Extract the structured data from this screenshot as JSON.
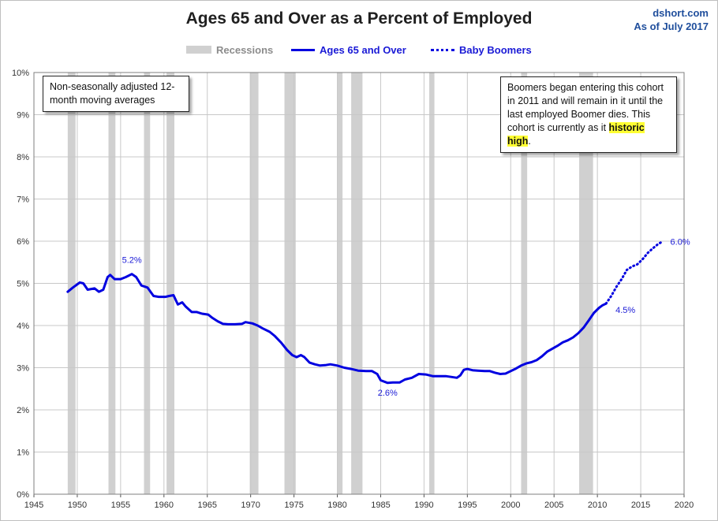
{
  "header": {
    "title": "Ages 65 and Over as a Percent of Employed",
    "source": "dshort.com",
    "as_of": "As of July 2017"
  },
  "legend": {
    "recessions": "Recessions",
    "main": "Ages 65 and Over",
    "boomers": "Baby Boomers"
  },
  "notes": {
    "left": "Non-seasonally adjusted 12-month moving averages",
    "right_text": "Boomers began entering this cohort in 2011  and will remain in it until the last employed Boomer dies. This cohort is currently as it ",
    "right_highlight": "historic high",
    "right_end": "."
  },
  "colors": {
    "series": "#0000e0",
    "recession": "#d0d0d0",
    "grid": "#c8c8c8",
    "highlight": "#ffff33"
  },
  "chart_data": {
    "type": "line",
    "title": "Ages 65 and Over as a Percent of Employed",
    "xlim": [
      1945,
      2020
    ],
    "ylim": [
      0,
      10
    ],
    "x_ticks": [
      1945,
      1950,
      1955,
      1960,
      1965,
      1970,
      1975,
      1980,
      1985,
      1990,
      1995,
      2000,
      2005,
      2010,
      2015,
      2020
    ],
    "y_ticks": [
      0,
      1,
      2,
      3,
      4,
      5,
      6,
      7,
      8,
      9,
      10
    ],
    "y_tick_labels": [
      "0%",
      "1%",
      "2%",
      "3%",
      "4%",
      "5%",
      "6%",
      "7%",
      "8%",
      "9%",
      "10%"
    ],
    "grid": true,
    "legend_position": "top-center",
    "recessions": [
      [
        1948.9,
        1949.8
      ],
      [
        1953.6,
        1954.4
      ],
      [
        1957.7,
        1958.4
      ],
      [
        1960.3,
        1961.2
      ],
      [
        1969.9,
        1970.9
      ],
      [
        1973.9,
        1975.2
      ],
      [
        1980.0,
        1980.6
      ],
      [
        1981.6,
        1982.9
      ],
      [
        1990.6,
        1991.2
      ],
      [
        2001.2,
        2001.9
      ],
      [
        2007.9,
        2009.5
      ]
    ],
    "series": [
      {
        "name": "Ages 65 and Over",
        "style": "solid",
        "points": [
          [
            1948.9,
            4.8
          ],
          [
            1949.5,
            4.9
          ],
          [
            1950.3,
            5.02
          ],
          [
            1950.7,
            5.0
          ],
          [
            1951.2,
            4.85
          ],
          [
            1952.0,
            4.88
          ],
          [
            1952.5,
            4.8
          ],
          [
            1953.0,
            4.85
          ],
          [
            1953.5,
            5.15
          ],
          [
            1953.8,
            5.2
          ],
          [
            1954.3,
            5.1
          ],
          [
            1955.0,
            5.1
          ],
          [
            1955.6,
            5.15
          ],
          [
            1956.3,
            5.22
          ],
          [
            1956.8,
            5.15
          ],
          [
            1957.4,
            4.95
          ],
          [
            1958.1,
            4.9
          ],
          [
            1958.8,
            4.7
          ],
          [
            1959.4,
            4.68
          ],
          [
            1960.2,
            4.68
          ],
          [
            1960.6,
            4.7
          ],
          [
            1961.1,
            4.72
          ],
          [
            1961.6,
            4.5
          ],
          [
            1962.1,
            4.55
          ],
          [
            1962.5,
            4.45
          ],
          [
            1963.2,
            4.32
          ],
          [
            1963.8,
            4.32
          ],
          [
            1964.4,
            4.28
          ],
          [
            1965.1,
            4.26
          ],
          [
            1965.6,
            4.18
          ],
          [
            1966.2,
            4.1
          ],
          [
            1966.8,
            4.04
          ],
          [
            1967.4,
            4.03
          ],
          [
            1968.2,
            4.03
          ],
          [
            1969.0,
            4.04
          ],
          [
            1969.4,
            4.08
          ],
          [
            1970.2,
            4.05
          ],
          [
            1970.8,
            4.0
          ],
          [
            1971.4,
            3.93
          ],
          [
            1972.2,
            3.85
          ],
          [
            1972.8,
            3.75
          ],
          [
            1973.5,
            3.6
          ],
          [
            1974.2,
            3.42
          ],
          [
            1974.8,
            3.3
          ],
          [
            1975.3,
            3.25
          ],
          [
            1975.8,
            3.3
          ],
          [
            1976.2,
            3.25
          ],
          [
            1976.8,
            3.12
          ],
          [
            1977.4,
            3.08
          ],
          [
            1978.0,
            3.05
          ],
          [
            1978.6,
            3.06
          ],
          [
            1979.2,
            3.08
          ],
          [
            1980.0,
            3.05
          ],
          [
            1980.8,
            3.0
          ],
          [
            1981.6,
            2.97
          ],
          [
            1982.4,
            2.93
          ],
          [
            1983.3,
            2.92
          ],
          [
            1984.0,
            2.92
          ],
          [
            1984.6,
            2.85
          ],
          [
            1985.0,
            2.7
          ],
          [
            1985.8,
            2.64
          ],
          [
            1986.4,
            2.65
          ],
          [
            1987.2,
            2.65
          ],
          [
            1987.8,
            2.72
          ],
          [
            1988.6,
            2.76
          ],
          [
            1989.4,
            2.85
          ],
          [
            1990.2,
            2.84
          ],
          [
            1991.0,
            2.8
          ],
          [
            1991.8,
            2.8
          ],
          [
            1992.5,
            2.8
          ],
          [
            1993.2,
            2.78
          ],
          [
            1993.8,
            2.76
          ],
          [
            1994.2,
            2.82
          ],
          [
            1994.6,
            2.95
          ],
          [
            1995.0,
            2.97
          ],
          [
            1995.6,
            2.94
          ],
          [
            1996.2,
            2.93
          ],
          [
            1997.0,
            2.92
          ],
          [
            1997.6,
            2.92
          ],
          [
            1998.2,
            2.88
          ],
          [
            1998.8,
            2.85
          ],
          [
            1999.4,
            2.86
          ],
          [
            2000.0,
            2.92
          ],
          [
            2000.6,
            2.98
          ],
          [
            2001.2,
            3.05
          ],
          [
            2001.8,
            3.1
          ],
          [
            2002.4,
            3.13
          ],
          [
            2003.0,
            3.18
          ],
          [
            2003.6,
            3.27
          ],
          [
            2004.2,
            3.38
          ],
          [
            2004.8,
            3.45
          ],
          [
            2005.4,
            3.52
          ],
          [
            2006.0,
            3.6
          ],
          [
            2006.6,
            3.65
          ],
          [
            2007.2,
            3.72
          ],
          [
            2007.8,
            3.82
          ],
          [
            2008.4,
            3.95
          ],
          [
            2009.0,
            4.12
          ],
          [
            2009.6,
            4.3
          ],
          [
            2010.2,
            4.42
          ],
          [
            2010.6,
            4.48
          ],
          [
            2011.0,
            4.52
          ]
        ]
      },
      {
        "name": "Baby Boomers",
        "style": "dotted",
        "points": [
          [
            2011.0,
            4.52
          ],
          [
            2011.6,
            4.7
          ],
          [
            2012.2,
            4.92
          ],
          [
            2012.8,
            5.1
          ],
          [
            2013.4,
            5.32
          ],
          [
            2014.0,
            5.4
          ],
          [
            2014.6,
            5.45
          ],
          [
            2015.2,
            5.57
          ],
          [
            2015.8,
            5.72
          ],
          [
            2016.4,
            5.83
          ],
          [
            2017.0,
            5.93
          ],
          [
            2017.5,
            5.99
          ]
        ]
      }
    ],
    "annotations": [
      {
        "label": "5.2%",
        "x": 1956.3,
        "y": 5.22
      },
      {
        "label": "2.6%",
        "x": 1985.8,
        "y": 2.64
      },
      {
        "label": "4.5%",
        "x": 2011.0,
        "y": 4.52
      },
      {
        "label": "6.0%",
        "x": 2017.5,
        "y": 5.99
      }
    ]
  }
}
